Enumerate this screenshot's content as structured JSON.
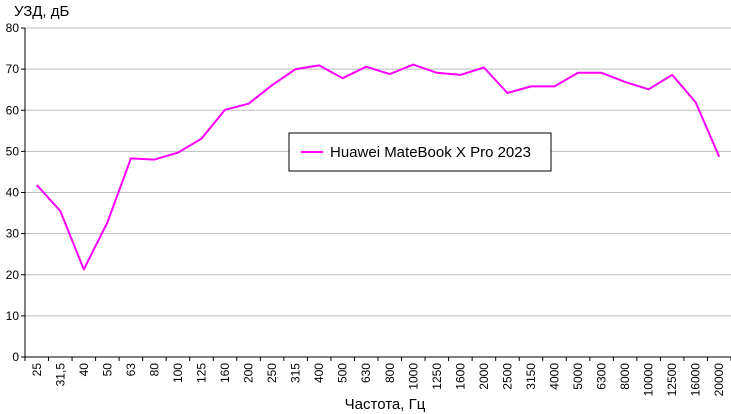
{
  "chart_data": {
    "type": "line",
    "ylabel": "УЗД, дБ",
    "xlabel": "Частота, Гц",
    "ylim": [
      0,
      80
    ],
    "y_ticks": [
      0,
      10,
      20,
      30,
      40,
      50,
      60,
      70,
      80
    ],
    "grid": "horizontal",
    "legend_position": "center-right",
    "categories": [
      "25",
      "31,5",
      "40",
      "50",
      "63",
      "80",
      "100",
      "125",
      "160",
      "200",
      "250",
      "315",
      "400",
      "500",
      "630",
      "800",
      "1000",
      "1250",
      "1600",
      "2000",
      "2500",
      "3150",
      "4000",
      "5000",
      "6300",
      "8000",
      "10000",
      "12500",
      "16000",
      "20000"
    ],
    "series": [
      {
        "name": "Huawei MateBook X Pro 2023",
        "color": "#ff00ff",
        "values": [
          41.8,
          35.5,
          21.3,
          32.7,
          48.3,
          48.0,
          49.7,
          53.1,
          60.1,
          61.6,
          66.1,
          70.0,
          70.9,
          67.8,
          70.6,
          68.8,
          71.1,
          69.1,
          68.6,
          70.4,
          64.2,
          65.8,
          65.8,
          69.1,
          69.1,
          66.9,
          65.1,
          68.6,
          61.9,
          48.7
        ]
      }
    ]
  }
}
